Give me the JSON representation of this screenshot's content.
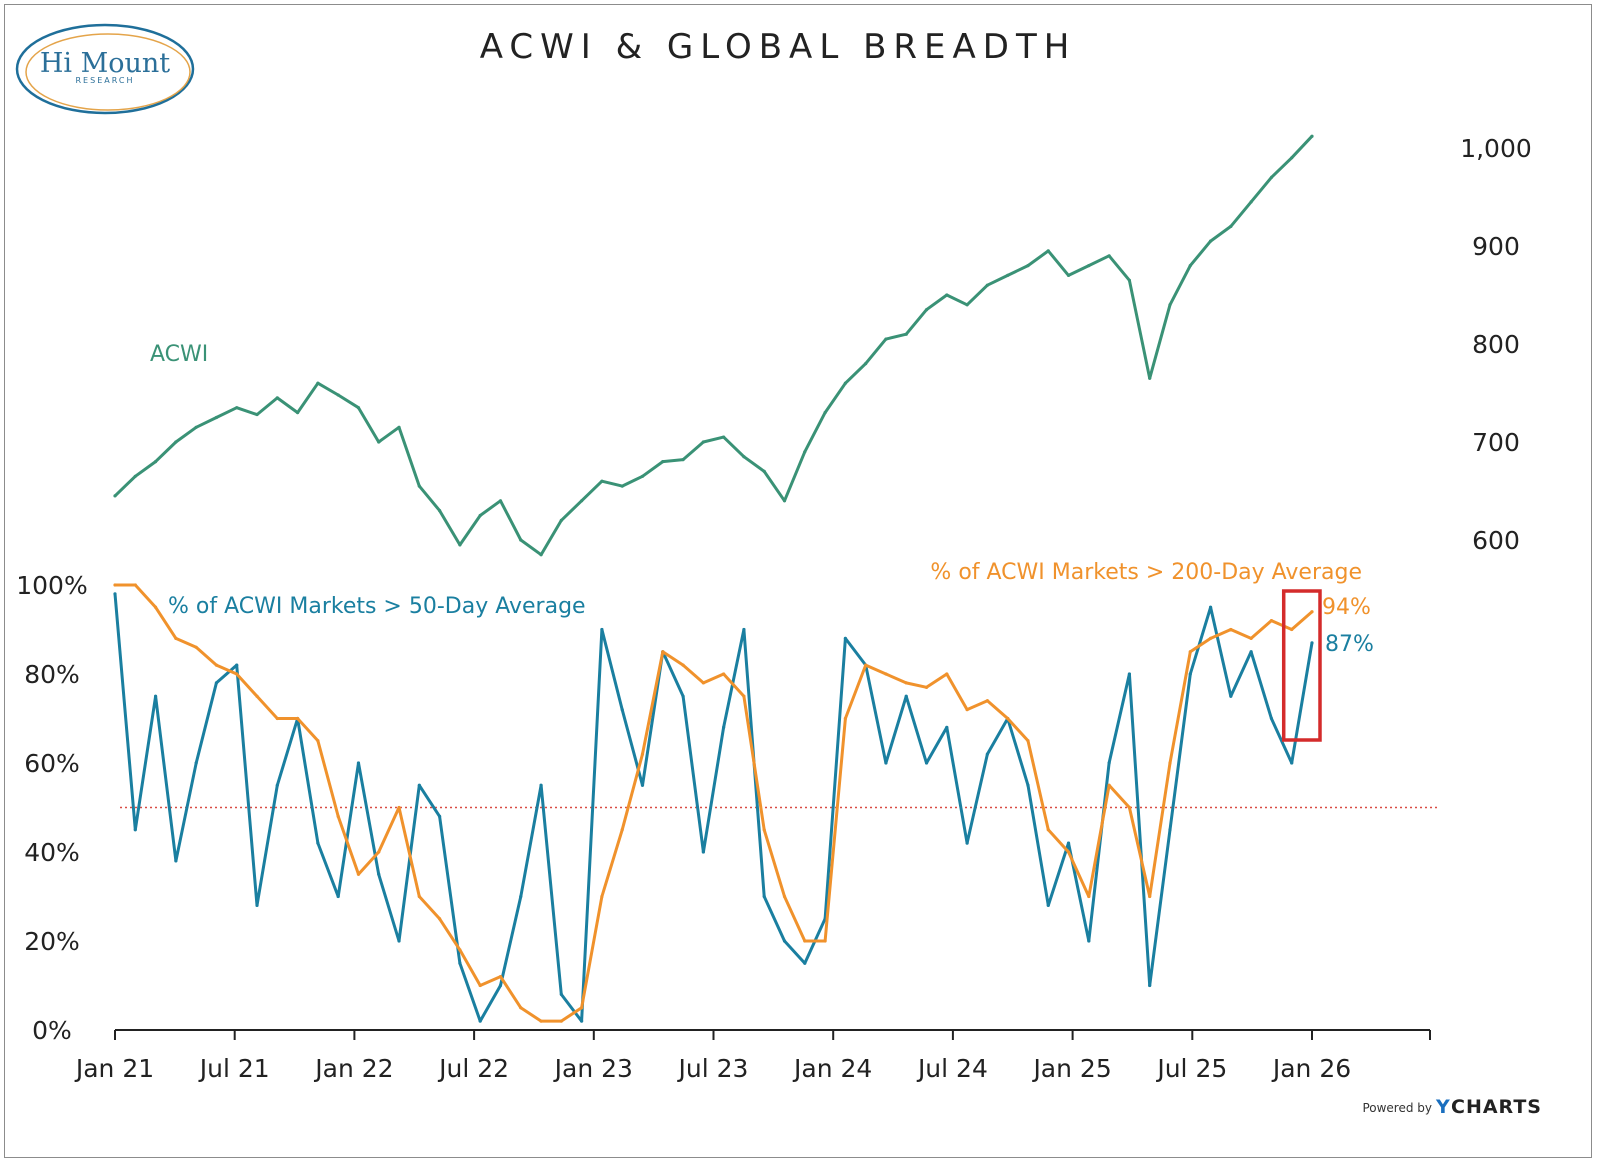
{
  "logo": {
    "name": "Hi Mount",
    "sub": "RESEARCH"
  },
  "colors": {
    "acwi": "#3a9276",
    "fifty": "#1a7fa0",
    "twohundred": "#f0922c",
    "threshold": "#d94b44",
    "highlight": "#d42b2b",
    "ycharts_accent": "#1a6fbf",
    "axis": "#222222"
  },
  "footer": {
    "powered_by": "Powered by",
    "brand_mark": "Y",
    "brand_rest": "CHARTS"
  },
  "chart_data": [
    {
      "type": "line",
      "title": "ACWI & GLOBAL BREADTH",
      "series": [
        {
          "name": "ACWI",
          "x": [
            "Jan 21",
            "Feb 21",
            "Mar 21",
            "Apr 21",
            "May 21",
            "Jun 21",
            "Jul 21",
            "Aug 21",
            "Sep 21",
            "Oct 21",
            "Nov 21",
            "Dec 21",
            "Jan 22",
            "Feb 22",
            "Mar 22",
            "Apr 22",
            "May 22",
            "Jun 22",
            "Jul 22",
            "Aug 22",
            "Sep 22",
            "Oct 22",
            "Nov 22",
            "Dec 22",
            "Jan 23",
            "Feb 23",
            "Mar 23",
            "Apr 23",
            "May 23",
            "Jun 23",
            "Jul 23",
            "Aug 23",
            "Sep 23",
            "Oct 23",
            "Nov 23",
            "Dec 23",
            "Jan 24",
            "Feb 24",
            "Mar 24",
            "Apr 24",
            "May 24",
            "Jun 24",
            "Jul 24",
            "Aug 24",
            "Sep 24",
            "Oct 24",
            "Nov 24",
            "Dec 24",
            "Jan 25",
            "Feb 25",
            "Mar 25",
            "Apr 25",
            "May 25",
            "Jun 25",
            "Jul 25",
            "Aug 25",
            "Sep 25",
            "Oct 25",
            "Nov 25",
            "Dec 25"
          ],
          "values": [
            645,
            665,
            680,
            700,
            715,
            725,
            735,
            728,
            745,
            730,
            760,
            748,
            735,
            700,
            715,
            655,
            630,
            595,
            625,
            640,
            600,
            585,
            620,
            640,
            660,
            655,
            665,
            680,
            682,
            700,
            705,
            685,
            670,
            640,
            690,
            730,
            760,
            780,
            805,
            810,
            835,
            850,
            840,
            860,
            870,
            880,
            895,
            870,
            880,
            890,
            865,
            765,
            840,
            880,
            905,
            920,
            945,
            970,
            990,
            1012
          ]
        }
      ],
      "labels": {
        "series": "ACWI"
      },
      "axis": {
        "y": {
          "ticks": [
            "1,000",
            "900",
            "800",
            "700",
            "600"
          ],
          "range": [
            600,
            1050
          ]
        }
      }
    },
    {
      "type": "line",
      "categories": [
        "Jan 21",
        "Feb 21",
        "Mar 21",
        "Apr 21",
        "May 21",
        "Jun 21",
        "Jul 21",
        "Aug 21",
        "Sep 21",
        "Oct 21",
        "Nov 21",
        "Dec 21",
        "Jan 22",
        "Feb 22",
        "Mar 22",
        "Apr 22",
        "May 22",
        "Jun 22",
        "Jul 22",
        "Aug 22",
        "Sep 22",
        "Oct 22",
        "Nov 22",
        "Dec 22",
        "Jan 23",
        "Feb 23",
        "Mar 23",
        "Apr 23",
        "May 23",
        "Jun 23",
        "Jul 23",
        "Aug 23",
        "Sep 23",
        "Oct 23",
        "Nov 23",
        "Dec 23",
        "Jan 24",
        "Feb 24",
        "Mar 24",
        "Apr 24",
        "May 24",
        "Jun 24",
        "Jul 24",
        "Aug 24",
        "Sep 24",
        "Oct 24",
        "Nov 24",
        "Dec 24",
        "Jan 25",
        "Feb 25",
        "Mar 25",
        "Apr 25",
        "May 25",
        "Jun 25",
        "Jul 25",
        "Aug 25",
        "Sep 25",
        "Oct 25",
        "Nov 25",
        "Dec 25"
      ],
      "series": [
        {
          "name": "% of ACWI Markets > 50-Day Average",
          "values": [
            98,
            45,
            75,
            38,
            60,
            78,
            82,
            28,
            55,
            70,
            42,
            30,
            60,
            35,
            20,
            55,
            48,
            15,
            2,
            10,
            30,
            55,
            8,
            2,
            90,
            72,
            55,
            85,
            75,
            40,
            68,
            90,
            30,
            20,
            15,
            25,
            88,
            82,
            60,
            75,
            60,
            68,
            42,
            62,
            70,
            55,
            28,
            42,
            20,
            60,
            80,
            10,
            45,
            80,
            95,
            75,
            85,
            70,
            60,
            87
          ],
          "end_label": "87%"
        },
        {
          "name": "% of ACWI Markets > 200-Day Average",
          "values": [
            100,
            100,
            95,
            88,
            86,
            82,
            80,
            75,
            70,
            70,
            65,
            48,
            35,
            40,
            50,
            30,
            25,
            18,
            10,
            12,
            5,
            2,
            2,
            5,
            30,
            45,
            62,
            85,
            82,
            78,
            80,
            75,
            45,
            30,
            20,
            20,
            70,
            82,
            80,
            78,
            77,
            80,
            72,
            74,
            70,
            65,
            45,
            40,
            30,
            55,
            50,
            30,
            60,
            85,
            88,
            90,
            88,
            92,
            90,
            94
          ],
          "end_label": "94%"
        }
      ],
      "axis": {
        "x": {
          "ticks": [
            "Jan 21",
            "Jul 21",
            "Jan 22",
            "Jul 22",
            "Jan 23",
            "Jul 23",
            "Jan 24",
            "Jul 24",
            "Jan 25",
            "Jul 25",
            "Jan 26"
          ]
        },
        "y": {
          "ticks": [
            "100%",
            "80%",
            "60%",
            "40%",
            "20%",
            "0%"
          ],
          "range": [
            0,
            100
          ]
        }
      },
      "reference_line": 50,
      "highlight_box": {
        "from": "Nov 25",
        "to": "Dec 25"
      }
    }
  ]
}
